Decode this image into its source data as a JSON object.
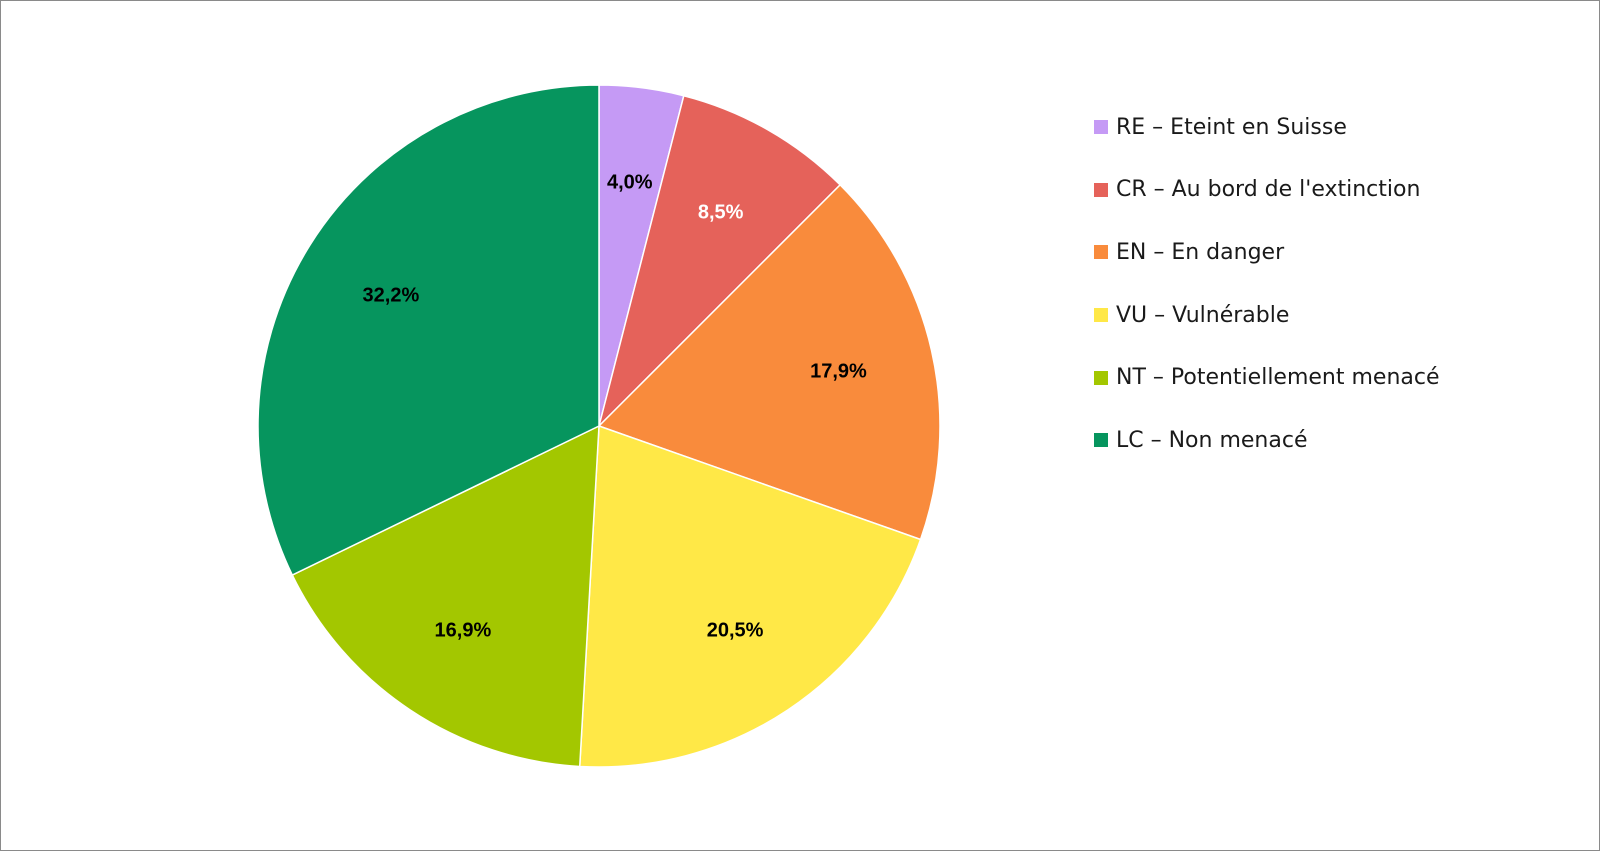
{
  "chart_data": {
    "type": "pie",
    "title": "",
    "categories": [
      "RE – Eteint en Suisse",
      "CR – Au bord de l'extinction",
      "EN – En danger",
      "VU – Vulnérable",
      "NT – Potentiellement menacé",
      "LC – Non menacé"
    ],
    "values": [
      4.0,
      8.5,
      17.9,
      20.5,
      16.9,
      32.2
    ],
    "data_labels": [
      "4,0%",
      "8,5%",
      "17,9%",
      "20,5%",
      "16,9%",
      "32,2%"
    ],
    "colors": [
      "#C59AF5",
      "#E5625A",
      "#F98B3C",
      "#FFE847",
      "#A3C700",
      "#06955E"
    ],
    "label_colors": [
      "#000000",
      "#ffffff",
      "#000000",
      "#000000",
      "#000000",
      "#000000"
    ],
    "start_angle": "12 o'clock",
    "direction": "clockwise",
    "legend_position": "right"
  }
}
